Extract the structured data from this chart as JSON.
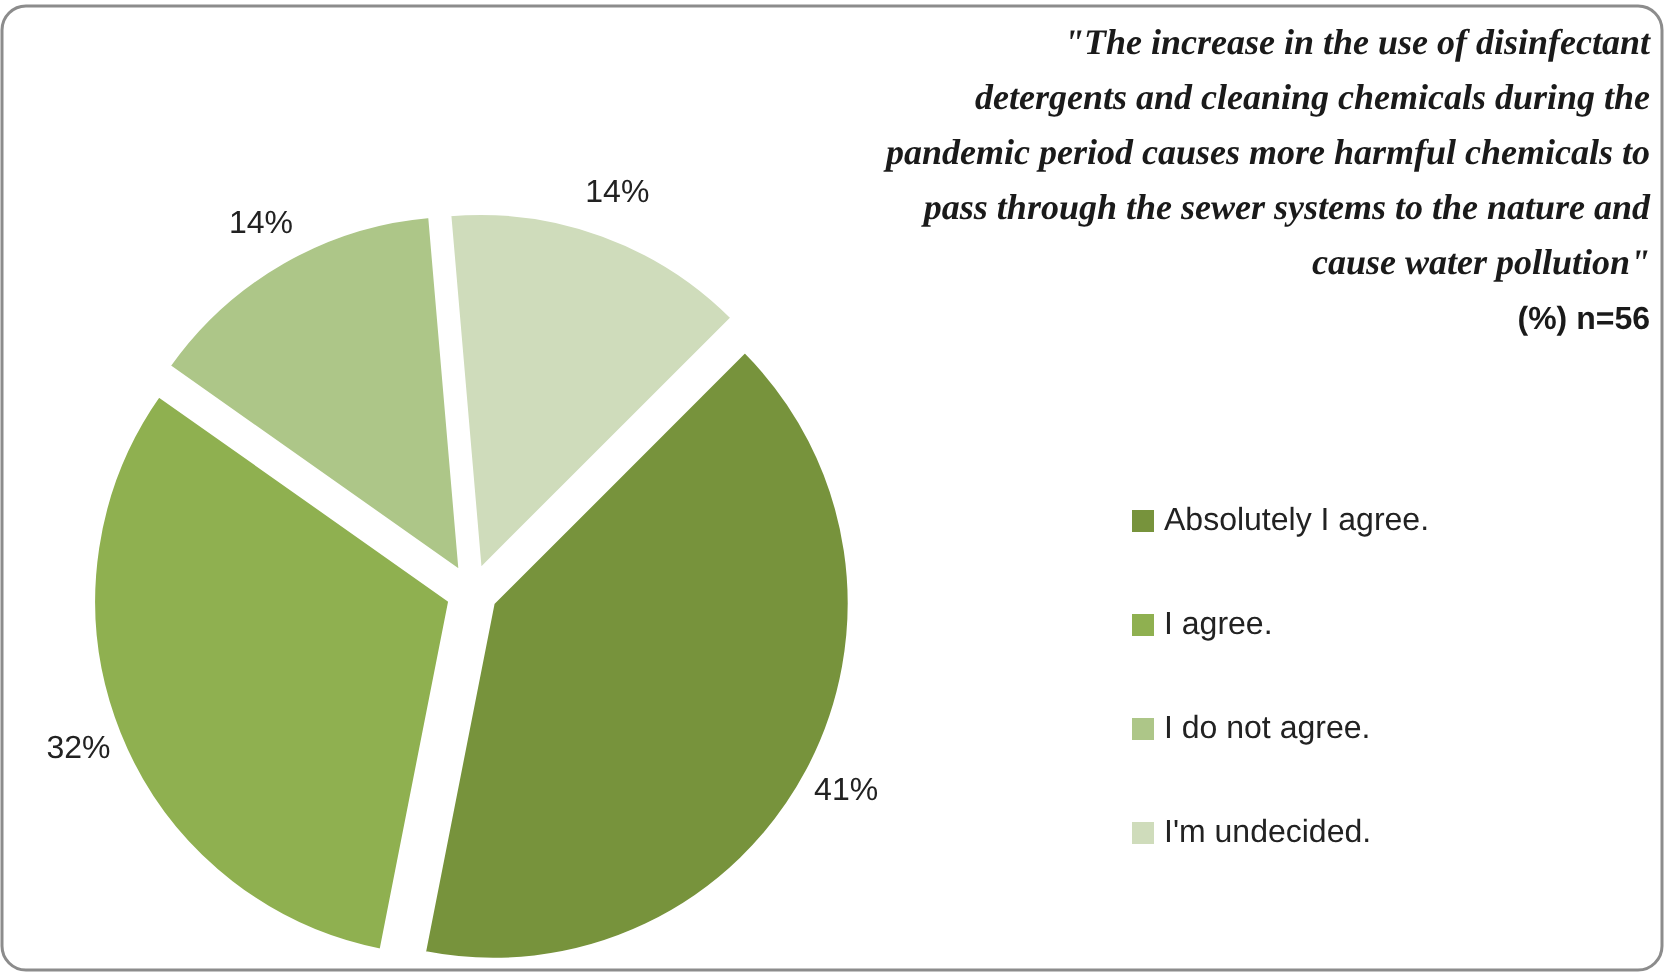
{
  "chart_data": {
    "type": "pie",
    "title": "\"The increase in the use of disinfectant detergents and cleaning chemicals during the pandemic period causes more harmful chemicals to pass through the sewer systems to the nature and cause water pollution\"",
    "subtitle": "(%) n=56",
    "categories": [
      "Absolutely I agree.",
      "I agree.",
      "I do not agree.",
      "I'm undecided."
    ],
    "values": [
      41,
      32,
      14,
      14
    ],
    "colors": [
      "#77933c",
      "#8fb050",
      "#adc688",
      "#cfdcbb"
    ],
    "value_labels": [
      "41%",
      "32%",
      "14%",
      "14%"
    ],
    "legend": "right"
  }
}
